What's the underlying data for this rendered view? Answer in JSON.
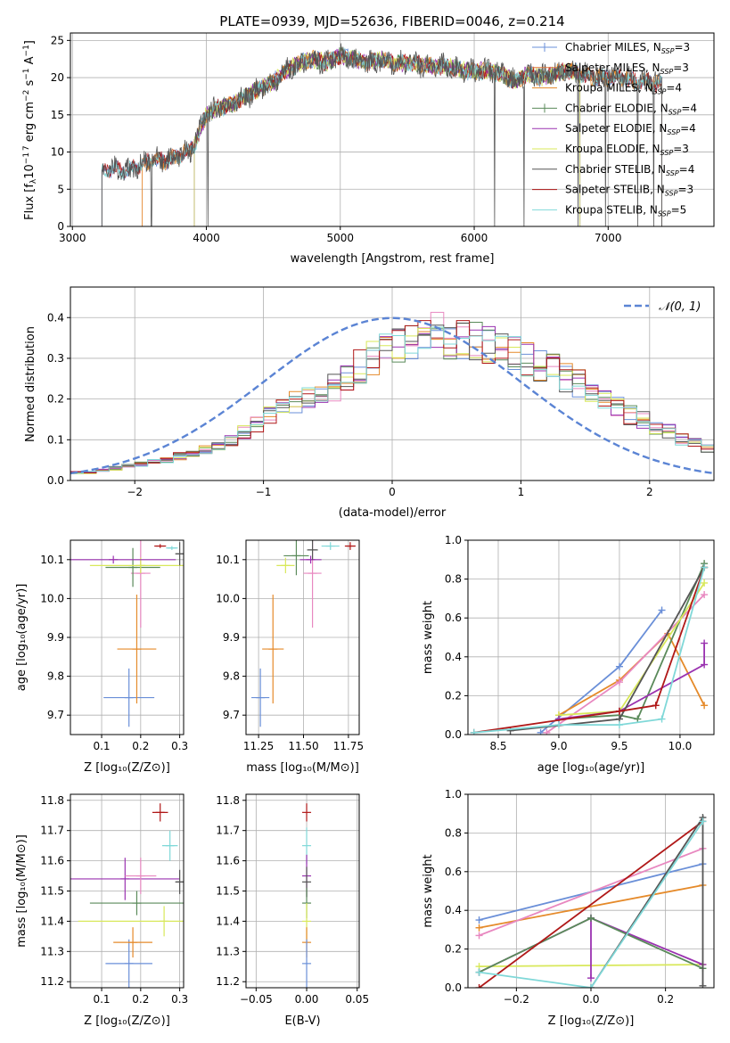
{
  "colors": {
    "Chabrier MILES": "#6a8fd8",
    "Salpeter MILES": "#e0783a",
    "Kroupa MILES": "#e58a2a",
    "Chabrier ELODIE": "#5a8a5a",
    "Salpeter ELODIE": "#9a32b0",
    "Kroupa ELODIE": "#d8e85a",
    "Chabrier STELIB": "#555555",
    "Salpeter STELIB": "#b01818",
    "Kroupa STELIB": "#7fd8d8",
    "pink": "#e888c0"
  },
  "chart_data": [
    {
      "id": "spectrum",
      "type": "line",
      "title": "PLATE=0939, MJD=52636, FIBERID=0046, z=0.214",
      "xlabel": "wavelength [Angstrom, rest frame]",
      "ylabel": "Flux [fλ10⁻¹⁷ erg cm⁻² s⁻¹ A⁻¹]",
      "xlim": [
        2985,
        7790
      ],
      "ylim": [
        0,
        26
      ],
      "xticks": [
        "3000",
        "4000",
        "5000",
        "6000",
        "7000"
      ],
      "yticks": [
        "0",
        "5",
        "10",
        "15",
        "20",
        "25"
      ],
      "grid": true,
      "legend": [
        {
          "label": "Chabrier MILES, N",
          "sub": "SSP",
          "n": "=3",
          "color": "#6a8fd8",
          "marker": "+"
        },
        {
          "label": "Salpeter MILES, N",
          "sub": "SSP",
          "n": "=3",
          "color": "#e0783a",
          "marker": ""
        },
        {
          "label": "Kroupa MILES, N",
          "sub": "SSP",
          "n": "=4",
          "color": "#e58a2a",
          "marker": ""
        },
        {
          "label": "Chabrier ELODIE, N",
          "sub": "SSP",
          "n": "=4",
          "color": "#5a8a5a",
          "marker": "+"
        },
        {
          "label": "Salpeter ELODIE, N",
          "sub": "SSP",
          "n": "=4",
          "color": "#9a32b0",
          "marker": ""
        },
        {
          "label": "Kroupa ELODIE, N",
          "sub": "SSP",
          "n": "=3",
          "color": "#d8e85a",
          "marker": ""
        },
        {
          "label": "Chabrier STELIB, N",
          "sub": "SSP",
          "n": "=4",
          "color": "#555555",
          "marker": ""
        },
        {
          "label": "Salpeter STELIB, N",
          "sub": "SSP",
          "n": "=3",
          "color": "#b01818",
          "marker": ""
        },
        {
          "label": "Kroupa STELIB, N",
          "sub": "SSP",
          "n": "=5",
          "color": "#7fd8d8",
          "marker": ""
        }
      ],
      "legend_position": "right",
      "series_shape": {
        "x": [
          3200,
          3300,
          3400,
          3500,
          3600,
          3700,
          3800,
          3900,
          4000,
          4100,
          4200,
          4300,
          4400,
          4500,
          4600,
          4700,
          4800,
          4900,
          5000,
          5100,
          5200,
          5300,
          5400,
          5500,
          5600,
          5700,
          5800,
          5900,
          6000,
          6100,
          6200,
          6300,
          6400,
          6500,
          6600,
          6700,
          6800,
          6900,
          7000,
          7100,
          7200,
          7300,
          7400
        ],
        "y": [
          7.0,
          7.8,
          7.4,
          8.2,
          9.0,
          8.8,
          9.5,
          10.5,
          15.0,
          16.0,
          16.5,
          17.5,
          18.5,
          19.5,
          21.0,
          22.0,
          22.5,
          22.0,
          23.0,
          22.5,
          22.0,
          22.5,
          22.0,
          22.0,
          21.8,
          21.5,
          21.5,
          21.0,
          20.8,
          21.0,
          20.5,
          19.5,
          20.5,
          20.0,
          20.5,
          21.0,
          20.5,
          20.0,
          20.0,
          20.0,
          19.5,
          19.5,
          19.0
        ]
      },
      "series_ranges": {
        "Chabrier MILES": [
          3220,
          7400
        ],
        "Salpeter MILES": [
          3520,
          7400
        ],
        "Kroupa MILES": [
          3520,
          7400
        ],
        "Chabrier ELODIE": [
          3910,
          6790
        ],
        "Salpeter ELODIE": [
          3910,
          6790
        ],
        "Kroupa ELODIE": [
          3910,
          6790
        ],
        "Chabrier STELIB": [
          3220,
          7400
        ],
        "Salpeter STELIB": [
          3220,
          7400
        ],
        "Kroupa STELIB": [
          3220,
          7400
        ]
      }
    },
    {
      "id": "residuals",
      "type": "line",
      "xlabel": "(data-model)/error",
      "ylabel": "Normed distribution",
      "xlim": [
        -2.5,
        2.5
      ],
      "ylim": [
        0,
        0.475
      ],
      "xticks": [
        "−2",
        "−1",
        "0",
        "1",
        "2"
      ],
      "yticks": [
        "0.0",
        "0.1",
        "0.2",
        "0.3",
        "0.4"
      ],
      "grid": true,
      "legend": [
        {
          "label": "𝒩(0, 1)",
          "color": "#5b84d4",
          "style": "dashed"
        }
      ],
      "legend_position": "top-right",
      "gaussian": {
        "mean": 0,
        "sigma": 1
      },
      "histogram_bins": [
        -2.5,
        -2.4,
        -2.3,
        -2.2,
        -2.1,
        -2.0,
        -1.9,
        -1.8,
        -1.7,
        -1.6,
        -1.5,
        -1.4,
        -1.3,
        -1.2,
        -1.1,
        -1.0,
        -0.9,
        -0.8,
        -0.7,
        -0.6,
        -0.5,
        -0.4,
        -0.3,
        -0.2,
        -0.1,
        0.0,
        0.1,
        0.2,
        0.3,
        0.4,
        0.5,
        0.6,
        0.7,
        0.8,
        0.9,
        1.0,
        1.1,
        1.2,
        1.3,
        1.4,
        1.5,
        1.6,
        1.7,
        1.8,
        1.9,
        2.0,
        2.1,
        2.2,
        2.3,
        2.4,
        2.5
      ],
      "histogram_base": [
        0.02,
        0.02,
        0.025,
        0.03,
        0.035,
        0.04,
        0.045,
        0.05,
        0.06,
        0.065,
        0.075,
        0.085,
        0.1,
        0.12,
        0.14,
        0.16,
        0.175,
        0.19,
        0.2,
        0.21,
        0.23,
        0.26,
        0.28,
        0.3,
        0.32,
        0.34,
        0.35,
        0.36,
        0.36,
        0.35,
        0.35,
        0.34,
        0.33,
        0.32,
        0.31,
        0.3,
        0.28,
        0.27,
        0.25,
        0.24,
        0.22,
        0.2,
        0.18,
        0.16,
        0.15,
        0.13,
        0.12,
        0.1,
        0.09,
        0.08
      ]
    },
    {
      "id": "age_vs_Z",
      "type": "scatter",
      "xlabel": "Z [log₁₀(Z/Z⊙)]",
      "ylabel": "age  [log₁₀(age/yr)]",
      "xlim": [
        0.02,
        0.31
      ],
      "ylim": [
        9.65,
        10.15
      ],
      "xticks": [
        "0.1",
        "0.2",
        "0.3"
      ],
      "yticks": [
        "9.7",
        "9.8",
        "9.9",
        "10.0",
        "10.1"
      ],
      "grid": true,
      "points": [
        {
          "name": "Chabrier MILES",
          "x": 0.17,
          "xerr": 0.065,
          "y": 9.745,
          "yerr": 0.075
        },
        {
          "name": "Kroupa MILES",
          "x": 0.19,
          "xerr": 0.05,
          "y": 9.87,
          "yerr": 0.14
        },
        {
          "name": "pink",
          "x": 0.2,
          "xerr": 0.025,
          "y": 10.065,
          "yerr": 0.14
        },
        {
          "name": "Chabrier ELODIE",
          "x": 0.18,
          "xerr": 0.07,
          "y": 10.08,
          "yerr": 0.05
        },
        {
          "name": "Kroupa ELODIE",
          "x": 0.2,
          "xerr": 0.13,
          "y": 10.085,
          "yerr": 0.02
        },
        {
          "name": "Salpeter ELODIE",
          "x": 0.13,
          "xerr": 0.16,
          "y": 10.1,
          "yerr": 0.01
        },
        {
          "name": "Chabrier STELIB",
          "x": 0.3,
          "xerr": 0.01,
          "y": 10.115,
          "yerr": 0.03
        },
        {
          "name": "Salpeter STELIB",
          "x": 0.25,
          "xerr": 0.015,
          "y": 10.135,
          "yerr": 0.005
        },
        {
          "name": "Kroupa STELIB",
          "x": 0.28,
          "xerr": 0.015,
          "y": 10.13,
          "yerr": 0.005
        }
      ]
    },
    {
      "id": "age_vs_mass",
      "type": "scatter",
      "xlabel": "mass [log₁₀(M/M⊙)]",
      "xlim": [
        11.18,
        11.81
      ],
      "ylim": [
        9.65,
        10.15
      ],
      "xticks": [
        "11.25",
        "11.50",
        "11.75"
      ],
      "yticks": [
        "9.7",
        "9.8",
        "9.9",
        "10.0",
        "10.1"
      ],
      "grid": true,
      "points": [
        {
          "name": "Chabrier MILES",
          "x": 11.26,
          "xerr": 0.05,
          "y": 9.745,
          "yerr": 0.075
        },
        {
          "name": "Kroupa MILES",
          "x": 11.33,
          "xerr": 0.06,
          "y": 9.87,
          "yerr": 0.14
        },
        {
          "name": "pink",
          "x": 11.55,
          "xerr": 0.05,
          "y": 10.065,
          "yerr": 0.14
        },
        {
          "name": "Chabrier ELODIE",
          "x": 11.46,
          "xerr": 0.07,
          "y": 10.11,
          "yerr": 0.05
        },
        {
          "name": "Kroupa ELODIE",
          "x": 11.4,
          "xerr": 0.05,
          "y": 10.085,
          "yerr": 0.02
        },
        {
          "name": "Salpeter ELODIE",
          "x": 11.54,
          "xerr": 0.06,
          "y": 10.1,
          "yerr": 0.01
        },
        {
          "name": "Chabrier STELIB",
          "x": 11.55,
          "xerr": 0.03,
          "y": 10.125,
          "yerr": 0.025
        },
        {
          "name": "Salpeter STELIB",
          "x": 11.76,
          "xerr": 0.03,
          "y": 10.135,
          "yerr": 0.01
        },
        {
          "name": "Kroupa STELIB",
          "x": 11.65,
          "xerr": 0.05,
          "y": 10.135,
          "yerr": 0.01
        }
      ]
    },
    {
      "id": "weight_vs_age",
      "type": "line",
      "xlabel": "age  [log₁₀(age/yr)]",
      "ylabel": "mass weight",
      "xlim": [
        8.25,
        10.28
      ],
      "ylim": [
        0,
        1
      ],
      "xticks": [
        "8.5",
        "9.0",
        "9.5",
        "10.0"
      ],
      "yticks": [
        "0.0",
        "0.2",
        "0.4",
        "0.6",
        "0.8",
        "1.0"
      ],
      "grid": true,
      "series": [
        {
          "name": "Chabrier MILES",
          "x": [
            8.85,
            9.5,
            9.85
          ],
          "y": [
            0.01,
            0.35,
            0.64
          ]
        },
        {
          "name": "Kroupa MILES",
          "x": [
            9.0,
            9.5,
            9.9,
            10.2
          ],
          "y": [
            0.1,
            0.28,
            0.52,
            0.15
          ]
        },
        {
          "name": "pink",
          "x": [
            8.9,
            9.5,
            10.2
          ],
          "y": [
            0.01,
            0.27,
            0.72
          ]
        },
        {
          "name": "Chabrier ELODIE",
          "x": [
            9.0,
            9.5,
            9.65,
            10.2
          ],
          "y": [
            0.08,
            0.1,
            0.08,
            0.88
          ]
        },
        {
          "name": "Kroupa ELODIE",
          "x": [
            9.0,
            9.5,
            10.2
          ],
          "y": [
            0.1,
            0.12,
            0.78
          ]
        },
        {
          "name": "Salpeter ELODIE",
          "x": [
            9.0,
            9.5,
            10.2,
            10.2
          ],
          "y": [
            0.08,
            0.12,
            0.36,
            0.47
          ]
        },
        {
          "name": "Chabrier STELIB",
          "x": [
            8.6,
            9.5,
            10.2
          ],
          "y": [
            0.02,
            0.08,
            0.86
          ]
        },
        {
          "name": "Salpeter STELIB",
          "x": [
            8.3,
            9.5,
            9.8,
            10.2
          ],
          "y": [
            0.01,
            0.12,
            0.15,
            0.86
          ]
        },
        {
          "name": "Kroupa STELIB",
          "x": [
            8.3,
            9.0,
            9.5,
            9.85,
            10.2
          ],
          "y": [
            0.01,
            0.05,
            0.05,
            0.08,
            0.86
          ]
        }
      ]
    },
    {
      "id": "mass_vs_Z",
      "type": "scatter",
      "xlabel": "Z [log₁₀(Z/Z⊙)]",
      "ylabel": "mass [log₁₀(M/M⊙)]",
      "xlim": [
        0.02,
        0.31
      ],
      "ylim": [
        11.18,
        11.82
      ],
      "xticks": [
        "0.1",
        "0.2",
        "0.3"
      ],
      "yticks": [
        "11.2",
        "11.3",
        "11.4",
        "11.5",
        "11.6",
        "11.7",
        "11.8"
      ],
      "grid": true,
      "points": [
        {
          "name": "Chabrier MILES",
          "x": 0.17,
          "xerr": 0.06,
          "y": 11.26,
          "yerr": 0.08
        },
        {
          "name": "Kroupa MILES",
          "x": 0.18,
          "xerr": 0.05,
          "y": 11.33,
          "yerr": 0.05
        },
        {
          "name": "Chabrier ELODIE",
          "x": 0.19,
          "xerr": 0.12,
          "y": 11.46,
          "yerr": 0.04
        },
        {
          "name": "Kroupa ELODIE",
          "x": 0.26,
          "xerr": 0.22,
          "y": 11.4,
          "yerr": 0.05
        },
        {
          "name": "Salpeter ELODIE",
          "x": 0.16,
          "xerr": 0.14,
          "y": 11.54,
          "yerr": 0.07
        },
        {
          "name": "pink",
          "x": 0.2,
          "xerr": 0.04,
          "y": 11.55,
          "yerr": 0.06
        },
        {
          "name": "Chabrier STELIB",
          "x": 0.3,
          "xerr": 0.01,
          "y": 11.53,
          "yerr": 0.04
        },
        {
          "name": "Kroupa STELIB",
          "x": 0.275,
          "xerr": 0.02,
          "y": 11.65,
          "yerr": 0.05
        },
        {
          "name": "Salpeter STELIB",
          "x": 0.25,
          "xerr": 0.02,
          "y": 11.76,
          "yerr": 0.03
        }
      ]
    },
    {
      "id": "mass_vs_ebv",
      "type": "scatter",
      "xlabel": "E(B-V)",
      "xlim": [
        -0.06,
        0.052
      ],
      "ylim": [
        11.18,
        11.82
      ],
      "xticks": [
        "−0.05",
        "0.00",
        "0.05"
      ],
      "yticks": [
        "11.2",
        "11.3",
        "11.4",
        "11.5",
        "11.6",
        "11.7",
        "11.8"
      ],
      "grid": true,
      "points": [
        {
          "name": "Salpeter STELIB",
          "x": 0,
          "y": 11.76,
          "yerr": 0.03
        },
        {
          "name": "Kroupa STELIB",
          "x": 0,
          "y": 11.65,
          "yerr": 0.06
        },
        {
          "name": "Salpeter ELODIE",
          "x": 0,
          "y": 11.55,
          "yerr": 0.07
        },
        {
          "name": "Chabrier STELIB",
          "x": 0,
          "y": 11.53,
          "yerr": 0.05
        },
        {
          "name": "Chabrier ELODIE",
          "x": 0,
          "y": 11.46,
          "yerr": 0.05
        },
        {
          "name": "Kroupa ELODIE",
          "x": 0,
          "y": 11.4,
          "yerr": 0.06
        },
        {
          "name": "Kroupa MILES",
          "x": 0,
          "y": 11.33,
          "yerr": 0.05
        },
        {
          "name": "Chabrier MILES",
          "x": 0,
          "y": 11.26,
          "yerr": 0.08
        }
      ]
    },
    {
      "id": "weight_vs_Z",
      "type": "line",
      "xlabel": "Z [log₁₀(Z/Z⊙)]",
      "ylabel": "mass weight",
      "xlim": [
        -0.33,
        0.33
      ],
      "ylim": [
        0,
        1
      ],
      "xticks": [
        "−0.2",
        "0.0",
        "0.2"
      ],
      "yticks": [
        "0.0",
        "0.2",
        "0.4",
        "0.6",
        "0.8",
        "1.0"
      ],
      "grid": true,
      "series": [
        {
          "name": "Chabrier MILES",
          "x": [
            -0.3,
            0.3
          ],
          "y": [
            0.35,
            0.64
          ]
        },
        {
          "name": "Kroupa MILES",
          "x": [
            -0.3,
            0.3
          ],
          "y": [
            0.31,
            0.53
          ]
        },
        {
          "name": "pink",
          "x": [
            -0.3,
            0.3
          ],
          "y": [
            0.27,
            0.72
          ]
        },
        {
          "name": "Kroupa ELODIE",
          "x": [
            -0.3,
            0.3
          ],
          "y": [
            0.11,
            0.12
          ]
        },
        {
          "name": "Salpeter ELODIE",
          "x": [
            -0.3,
            0.0,
            0.0,
            0.0,
            0.3
          ],
          "y": [
            0.08,
            0.36,
            0.05,
            0.36,
            0.12
          ]
        },
        {
          "name": "Chabrier ELODIE",
          "x": [
            -0.3,
            0.0,
            0.3
          ],
          "y": [
            0.08,
            0.36,
            0.1
          ]
        },
        {
          "name": "Salpeter STELIB",
          "x": [
            -0.3,
            0.3
          ],
          "y": [
            0.0,
            0.86
          ]
        },
        {
          "name": "Chabrier STELIB",
          "x": [
            0.0,
            0.3,
            0.3
          ],
          "y": [
            0.0,
            0.88,
            0.01
          ]
        },
        {
          "name": "Kroupa STELIB",
          "x": [
            -0.3,
            0.0,
            0.3
          ],
          "y": [
            0.08,
            0.0,
            0.86
          ]
        }
      ]
    }
  ]
}
